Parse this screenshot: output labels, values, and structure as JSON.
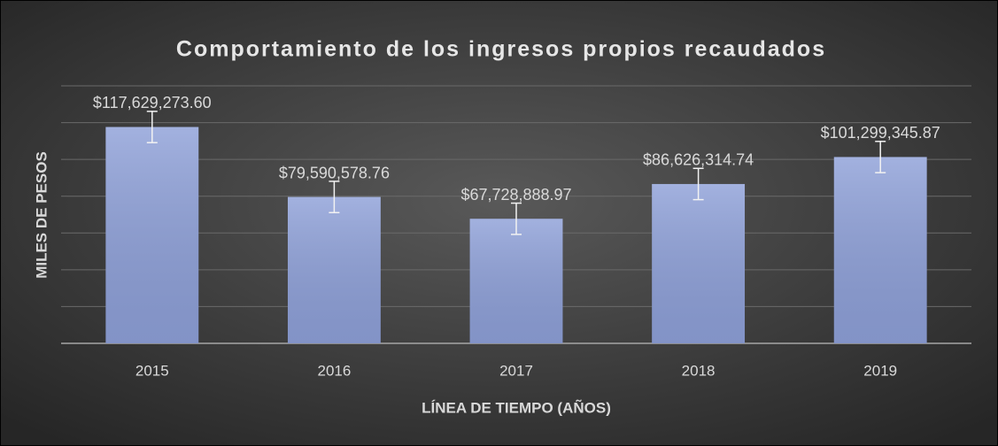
{
  "chart_data": {
    "type": "bar",
    "title": "Comportamiento de los ingresos propios recaudados",
    "x_label": "LÍNEA DE TIEMPO (AÑOS)",
    "y_label": "MILES DE PESOS",
    "categories": [
      "2015",
      "2016",
      "2017",
      "2018",
      "2019"
    ],
    "values": [
      117629273.6,
      79590578.76,
      67728888.97,
      86626314.74,
      101299345.87
    ],
    "value_labels": [
      "$117,629,273.60",
      "$79,590,578.76",
      "$67,728,888.97",
      "$86,626,314.74",
      "$101,299,345.87"
    ],
    "errors": [
      8500000,
      8500000,
      8500000,
      8500000,
      8500000
    ],
    "color": "#8ea0d8",
    "ylim": [
      0,
      140000000
    ],
    "yticks": [
      0,
      20000000,
      40000000,
      60000000,
      80000000,
      100000000,
      120000000,
      140000000
    ],
    "grid": true,
    "show_y_tick_labels": false
  }
}
